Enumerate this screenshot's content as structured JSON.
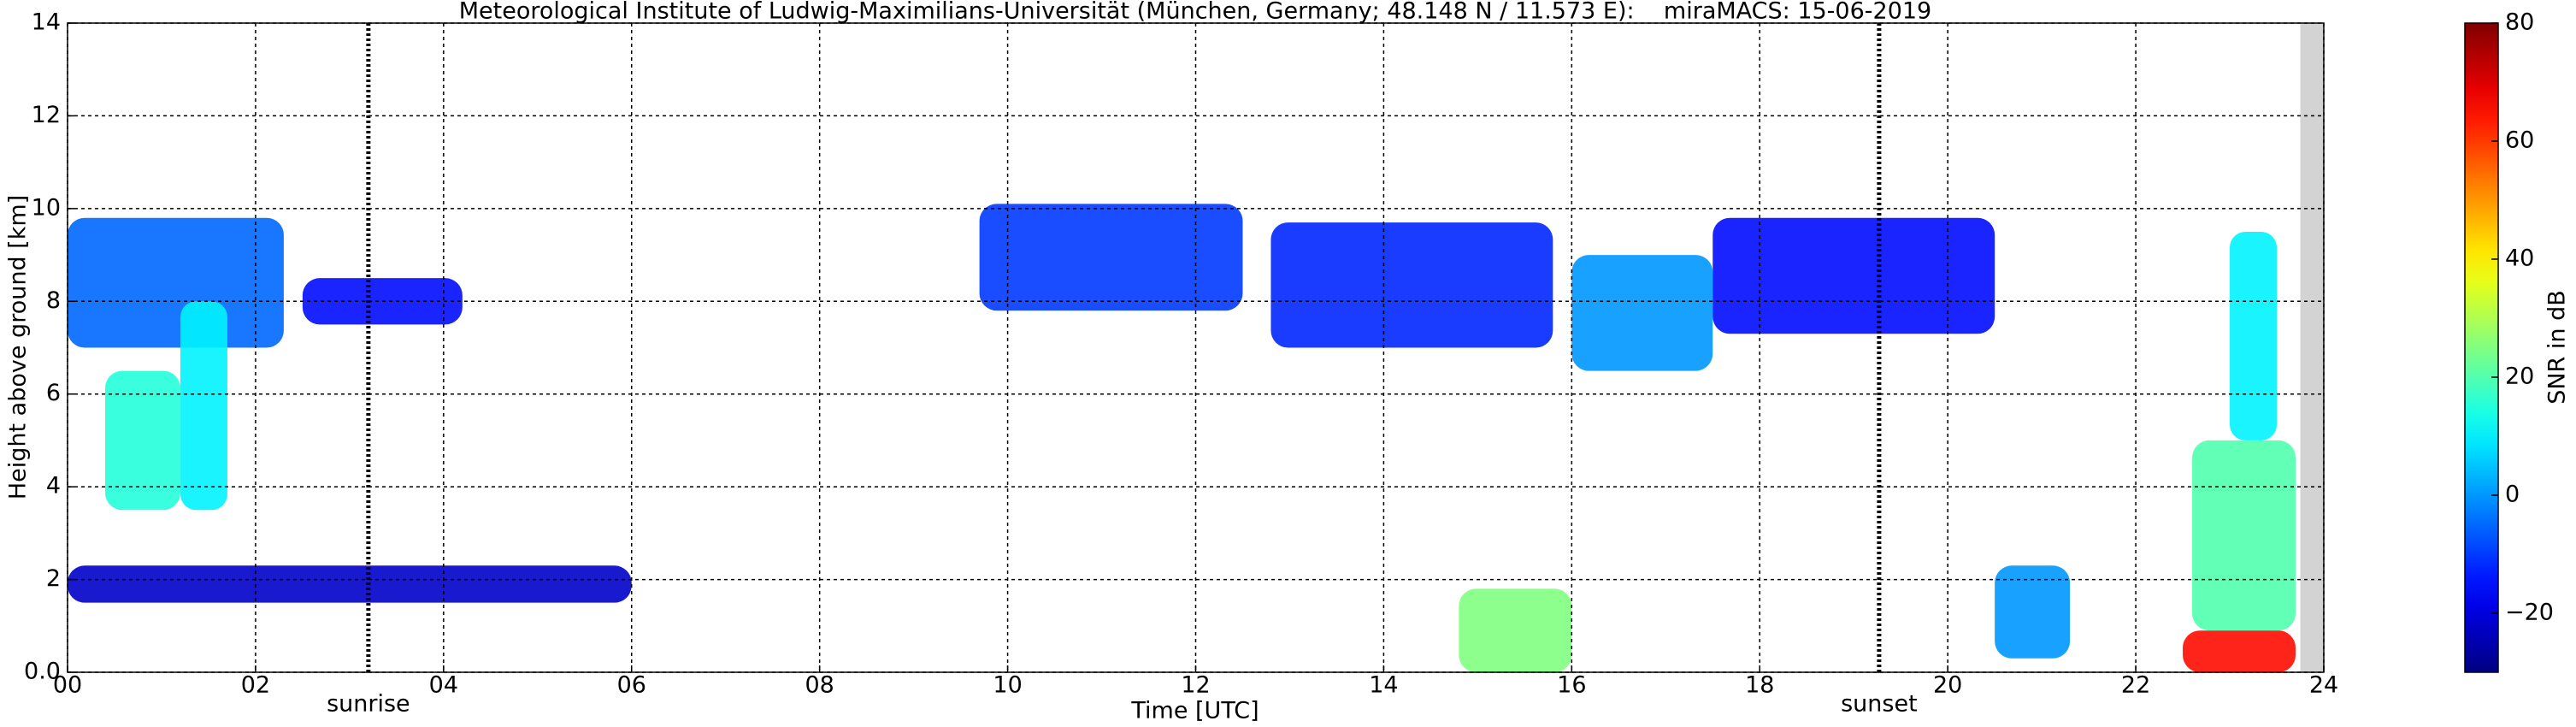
{
  "chart_data": {
    "type": "time-height",
    "title": "Meteorological Institute of Ludwig-Maximilians-Universität (München, Germany; 48.148 N / 11.573 E):    miraMACS: 15-06-2019",
    "x_label": "Time [UTC]",
    "y_label": "Height above ground [km]",
    "colorbar_label": "SNR in dB",
    "xlim": [
      0,
      24
    ],
    "ylim": [
      0,
      14
    ],
    "clim": [
      -30,
      80
    ],
    "colormap": "jet",
    "grid": true,
    "xticks": [
      {
        "value": 0,
        "label": "00"
      },
      {
        "value": 2,
        "label": "02"
      },
      {
        "value": 4,
        "label": "04"
      },
      {
        "value": 6,
        "label": "06"
      },
      {
        "value": 8,
        "label": "08"
      },
      {
        "value": 10,
        "label": "10"
      },
      {
        "value": 12,
        "label": "12"
      },
      {
        "value": 14,
        "label": "14"
      },
      {
        "value": 16,
        "label": "16"
      },
      {
        "value": 18,
        "label": "18"
      },
      {
        "value": 20,
        "label": "20"
      },
      {
        "value": 22,
        "label": "22"
      },
      {
        "value": 24,
        "label": "24"
      }
    ],
    "yticks": [
      {
        "value": 0,
        "label": "0.0"
      },
      2,
      4,
      6,
      8,
      10,
      12,
      14
    ],
    "cticks": [
      {
        "value": -20,
        "label": "−20"
      },
      0,
      20,
      40,
      60,
      80
    ],
    "markers": [
      {
        "label": "sunrise",
        "x": 3.2
      },
      {
        "label": "sunset",
        "x": 19.27
      }
    ],
    "no_data_from": 23.75,
    "echoes": [
      {
        "start": 0.0,
        "end": 2.3,
        "bottom": 7.0,
        "top": 9.8,
        "snr": -5
      },
      {
        "start": 0.4,
        "end": 1.2,
        "bottom": 3.5,
        "top": 6.5,
        "snr": 15
      },
      {
        "start": 1.2,
        "end": 1.7,
        "bottom": 3.5,
        "top": 8.0,
        "snr": 10
      },
      {
        "start": 2.5,
        "end": 4.2,
        "bottom": 7.5,
        "top": 8.5,
        "snr": -15
      },
      {
        "start": 9.7,
        "end": 12.5,
        "bottom": 7.8,
        "top": 10.1,
        "snr": -10
      },
      {
        "start": 12.8,
        "end": 15.8,
        "bottom": 7.0,
        "top": 9.7,
        "snr": -12
      },
      {
        "start": 16.0,
        "end": 17.5,
        "bottom": 6.5,
        "top": 9.0,
        "snr": 0
      },
      {
        "start": 17.5,
        "end": 20.5,
        "bottom": 7.3,
        "top": 9.8,
        "snr": -15
      },
      {
        "start": 0.0,
        "end": 6.0,
        "bottom": 1.5,
        "top": 2.3,
        "snr": -22
      },
      {
        "start": 14.8,
        "end": 16.0,
        "bottom": 0.0,
        "top": 1.8,
        "snr": 25
      },
      {
        "start": 20.5,
        "end": 21.3,
        "bottom": 0.3,
        "top": 2.3,
        "snr": 0
      },
      {
        "start": 22.6,
        "end": 23.7,
        "bottom": 0.9,
        "top": 5.0,
        "snr": 20
      },
      {
        "start": 22.5,
        "end": 23.7,
        "bottom": 0.0,
        "top": 0.9,
        "snr": 65
      },
      {
        "start": 23.0,
        "end": 23.5,
        "bottom": 5.0,
        "top": 9.5,
        "snr": 10
      }
    ]
  }
}
